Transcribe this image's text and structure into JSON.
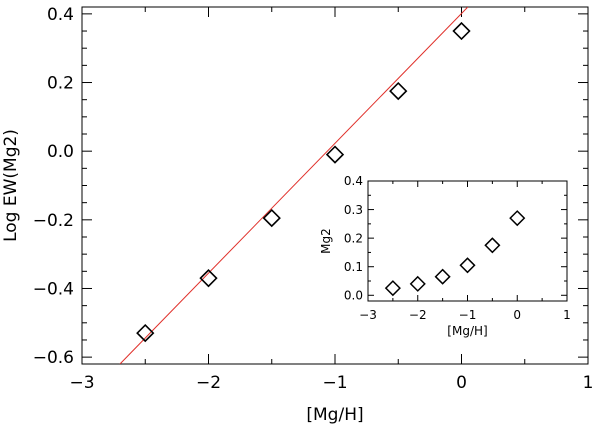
{
  "chart_data": [
    {
      "type": "scatter",
      "xlabel": "[Mg/H]",
      "ylabel": "Log EW(Mg2)",
      "xlim": [
        -3,
        1
      ],
      "ylim": [
        -0.62,
        0.42
      ],
      "xticks": [
        -3,
        -2,
        -1,
        0,
        1
      ],
      "xtick_labels": [
        "−3",
        "−2",
        "−1",
        "0",
        "1"
      ],
      "yticks": [
        -0.6,
        -0.4,
        -0.2,
        0.0,
        0.2,
        0.4
      ],
      "ytick_labels": [
        "−0.6",
        "−0.4",
        "−0.2",
        "0.0",
        "0.2",
        "0.4"
      ],
      "marker": "open-diamond",
      "series": [
        {
          "x": [
            -2.5,
            -2.0,
            -1.5,
            -1.0,
            -0.5,
            0.0
          ],
          "y": [
            -0.53,
            -0.37,
            -0.195,
            -0.01,
            0.175,
            0.35
          ]
        }
      ],
      "fit_line": {
        "x": [
          -2.7,
          0.05
        ],
        "y": [
          -0.62,
          0.42
        ],
        "color": "#e0302a"
      }
    },
    {
      "type": "scatter",
      "inset": true,
      "xlabel": "[Mg/H]",
      "ylabel": "Mg2",
      "xlim": [
        -3,
        1
      ],
      "ylim": [
        -0.02,
        0.4
      ],
      "xticks": [
        -3,
        -2,
        -1,
        0,
        1
      ],
      "xtick_labels": [
        "−3",
        "−2",
        "−1",
        "0",
        "1"
      ],
      "yticks": [
        0.0,
        0.1,
        0.2,
        0.3,
        0.4
      ],
      "ytick_labels": [
        "0.0",
        "0.1",
        "0.2",
        "0.3",
        "0.4"
      ],
      "marker": "open-diamond",
      "series": [
        {
          "x": [
            -2.5,
            -2.0,
            -1.5,
            -1.0,
            -0.5,
            0.0
          ],
          "y": [
            0.025,
            0.04,
            0.065,
            0.105,
            0.175,
            0.27
          ]
        }
      ]
    }
  ]
}
